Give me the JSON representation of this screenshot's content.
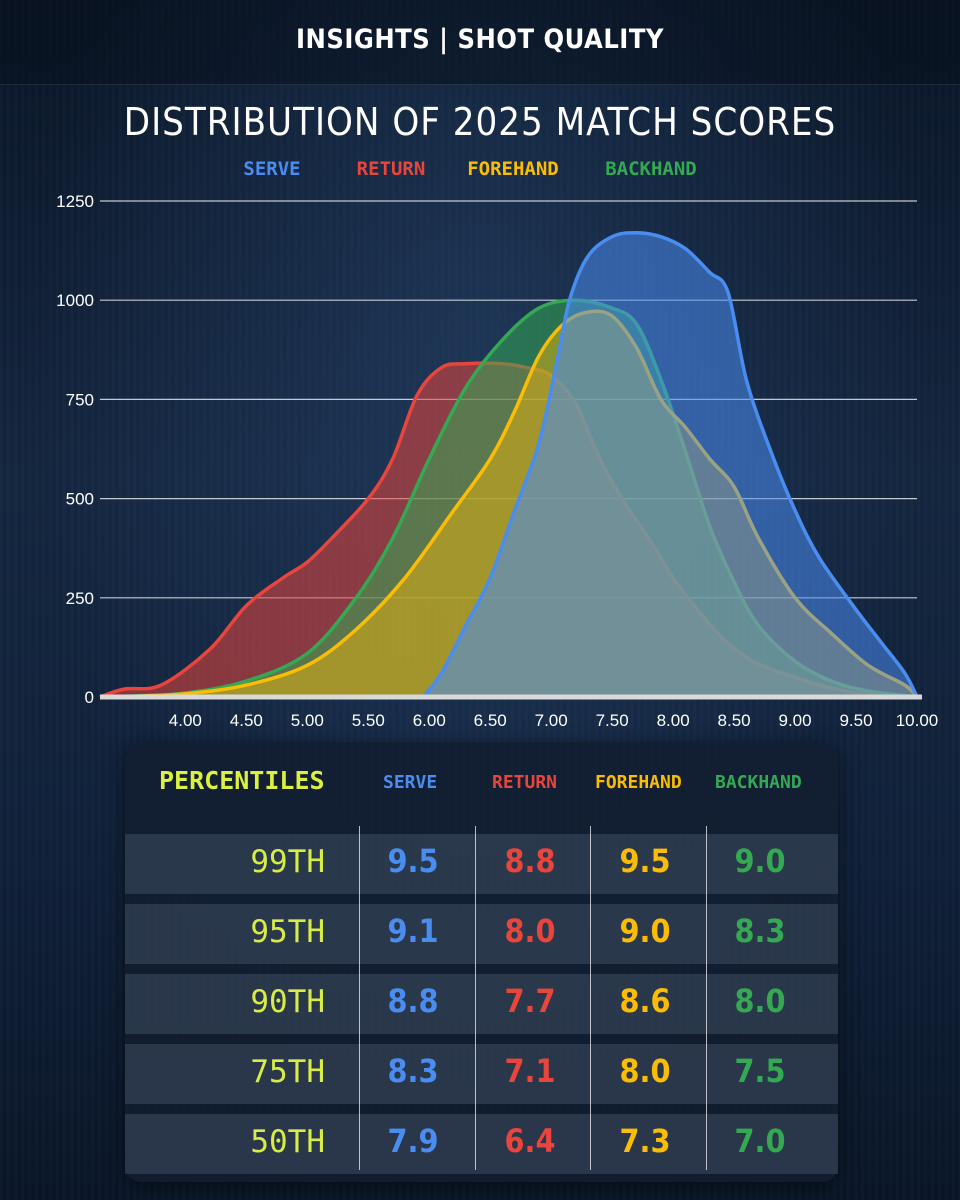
{
  "header": {
    "title": "INSIGHTS | SHOT QUALITY"
  },
  "colors": {
    "serve": "#4a8df0",
    "return": "#e8453c",
    "forehand": "#fbbc05",
    "backhand": "#34a853",
    "percentile": "#d8ec46"
  },
  "chart_data": {
    "type": "area",
    "title": "DISTRIBUTION OF 2025 MATCH SCORES",
    "legend": [
      "SERVE",
      "RETURN",
      "FOREHAND",
      "BACKHAND"
    ],
    "legend_position": "top",
    "xlabel": "",
    "ylabel": "",
    "xlim": [
      3.3,
      10.0
    ],
    "ylim": [
      0,
      1250
    ],
    "x_ticks": [
      "4.00",
      "4.50",
      "5.00",
      "5.50",
      "6.00",
      "6.50",
      "7.00",
      "7.50",
      "8.00",
      "8.50",
      "9.00",
      "9.50",
      "10.00"
    ],
    "y_ticks": [
      "0",
      "250",
      "500",
      "750",
      "1000",
      "1250"
    ],
    "grid": true,
    "series": [
      {
        "name": "RETURN",
        "x": [
          3.3,
          3.5,
          3.8,
          4.2,
          4.5,
          4.8,
          5.0,
          5.2,
          5.5,
          5.7,
          5.9,
          6.1,
          6.3,
          6.6,
          6.8,
          7.0,
          7.2,
          7.4,
          7.6,
          7.8,
          8.0,
          8.2,
          8.4,
          8.6,
          8.8,
          9.0,
          9.2,
          9.5,
          9.8,
          10.0
        ],
        "values": [
          0,
          20,
          30,
          120,
          230,
          300,
          340,
          400,
          500,
          600,
          760,
          830,
          840,
          840,
          830,
          810,
          740,
          600,
          490,
          400,
          300,
          220,
          150,
          100,
          70,
          50,
          30,
          10,
          3,
          0
        ]
      },
      {
        "name": "BACKHAND",
        "x": [
          3.3,
          3.6,
          4.0,
          4.5,
          5.0,
          5.4,
          5.7,
          6.0,
          6.3,
          6.6,
          6.9,
          7.2,
          7.5,
          7.7,
          7.9,
          8.1,
          8.3,
          8.5,
          8.7,
          9.0,
          9.3,
          9.6,
          10.0
        ],
        "values": [
          0,
          3,
          10,
          40,
          110,
          250,
          400,
          600,
          780,
          900,
          980,
          1000,
          980,
          940,
          800,
          620,
          430,
          290,
          180,
          90,
          40,
          15,
          0
        ]
      },
      {
        "name": "FOREHAND",
        "x": [
          3.3,
          3.6,
          4.0,
          4.5,
          5.0,
          5.4,
          5.8,
          6.2,
          6.5,
          6.7,
          6.9,
          7.1,
          7.3,
          7.5,
          7.7,
          7.9,
          8.1,
          8.3,
          8.5,
          8.7,
          9.0,
          9.3,
          9.6,
          9.9,
          10.0
        ],
        "values": [
          0,
          2,
          8,
          30,
          80,
          170,
          300,
          470,
          600,
          720,
          860,
          940,
          970,
          960,
          880,
          750,
          680,
          600,
          530,
          400,
          250,
          160,
          80,
          30,
          0
        ]
      },
      {
        "name": "SERVE",
        "x": [
          5.95,
          6.1,
          6.3,
          6.5,
          6.7,
          6.9,
          7.05,
          7.15,
          7.3,
          7.5,
          7.7,
          7.9,
          8.1,
          8.3,
          8.45,
          8.6,
          8.8,
          9.0,
          9.2,
          9.5,
          9.7,
          9.9,
          10.0
        ],
        "values": [
          0,
          60,
          180,
          300,
          470,
          640,
          850,
          1000,
          1110,
          1160,
          1170,
          1160,
          1130,
          1070,
          1020,
          800,
          620,
          470,
          350,
          220,
          140,
          60,
          0
        ]
      }
    ]
  },
  "table": {
    "title": "PERCENTILES",
    "columns": [
      "SERVE",
      "RETURN",
      "FOREHAND",
      "BACKHAND"
    ],
    "rows": [
      {
        "label": "99TH",
        "values": [
          "9.5",
          "8.8",
          "9.5",
          "9.0"
        ]
      },
      {
        "label": "95TH",
        "values": [
          "9.1",
          "8.0",
          "9.0",
          "8.3"
        ]
      },
      {
        "label": "90TH",
        "values": [
          "8.8",
          "7.7",
          "8.6",
          "8.0"
        ]
      },
      {
        "label": "75TH",
        "values": [
          "8.3",
          "7.1",
          "8.0",
          "7.5"
        ]
      },
      {
        "label": "50TH",
        "values": [
          "7.9",
          "6.4",
          "7.3",
          "7.0"
        ]
      }
    ]
  }
}
